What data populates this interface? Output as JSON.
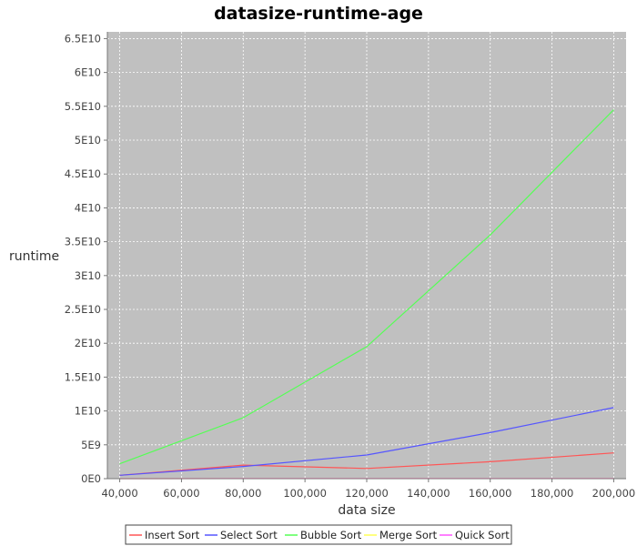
{
  "chart_data": {
    "type": "line",
    "title": "datasize-runtime-age",
    "xlabel": "data size",
    "ylabel": "runtime",
    "x": [
      40000,
      80000,
      120000,
      160000,
      200000
    ],
    "x_tick_values": [
      40000,
      60000,
      80000,
      100000,
      120000,
      140000,
      160000,
      180000,
      200000
    ],
    "x_tick_labels": [
      "40,000",
      "60,000",
      "80,000",
      "100,000",
      "120,000",
      "140,000",
      "160,000",
      "180,000",
      "200,000"
    ],
    "xlim": [
      36000,
      204000
    ],
    "y_tick_values": [
      0,
      5000000000,
      10000000000,
      15000000000,
      20000000000,
      25000000000,
      30000000000,
      35000000000,
      40000000000,
      45000000000,
      50000000000,
      55000000000,
      60000000000,
      65000000000
    ],
    "y_tick_labels": [
      "0E0",
      "5E9",
      "1E10",
      "1.5E10",
      "2E10",
      "2.5E10",
      "3E10",
      "3.5E10",
      "4E10",
      "4.5E10",
      "5E10",
      "5.5E10",
      "6E10",
      "6.5E10"
    ],
    "ylim": [
      0,
      66000000000
    ],
    "grid": true,
    "background_color": "#c0c0c0",
    "legend_position": "bottom",
    "series": [
      {
        "name": "Insert Sort",
        "color": "#ff5555",
        "values": [
          500000000,
          2000000000,
          1500000000,
          2500000000,
          3800000000
        ]
      },
      {
        "name": "Select Sort",
        "color": "#5555ff",
        "values": [
          500000000,
          1800000000,
          3500000000,
          6800000000,
          10500000000
        ]
      },
      {
        "name": "Bubble Sort",
        "color": "#55ff55",
        "values": [
          2200000000,
          9000000000,
          19500000000,
          36000000000,
          54500000000
        ]
      },
      {
        "name": "Merge Sort",
        "color": "#ffff55",
        "values": [
          5000000,
          10000000,
          15000000,
          20000000,
          25000000
        ]
      },
      {
        "name": "Quick Sort",
        "color": "#ff55ff",
        "values": [
          4000000,
          8000000,
          12000000,
          16000000,
          20000000
        ]
      }
    ]
  }
}
